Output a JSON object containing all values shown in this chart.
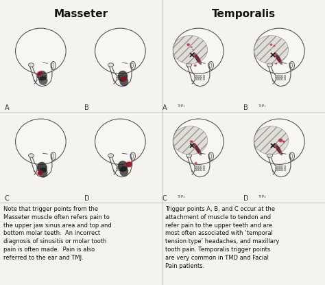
{
  "title_left": "Masseter",
  "title_right": "Temporalis",
  "title_fontsize": 11,
  "title_fontweight": "bold",
  "bg_color": "#f5f3f0",
  "text_color": "#111111",
  "body_fontsize": 6.0,
  "left_text": "Note that trigger points from the\nMasseter muscle often refers pain to\nthe upper jaw sinus area and top and\nbottom molar teeth.  An incorrect\ndiagnosis of sinusitis or molar tooth\npain is often made.  Pain is also\nreferred to the ear and TMJ.",
  "right_text": "Trigger points A, B, and C occur at the\nattachment of muscle to tendon and\nrefer pain to the upper teeth and are\nmost often associated with ‘temporal\ntension type’ headaches, and maxillary\ntooth pain. Temporalis trigger points\nare very common in TMD and Facial\nPain patients.",
  "skull_line_color": "#555555",
  "muscle_dark_color": "#222222",
  "red_spot_color": "#8b1020",
  "pink_spot_color": "#cc3355",
  "hatch_color": "#888888",
  "panel_labels_masseter": [
    "A",
    "B",
    "C",
    "D"
  ],
  "panel_labels_temporalis_top": [
    "A",
    "B"
  ],
  "panel_labels_temporalis_bot": [
    "C",
    "D"
  ],
  "trp_top": [
    "TrP₁",
    "TrP₁"
  ],
  "trp_bot": [
    "TrP₂",
    "TrP₂"
  ]
}
